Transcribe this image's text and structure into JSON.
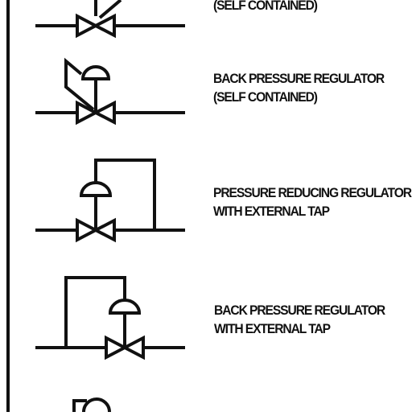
{
  "legend": {
    "entries": [
      {
        "lines": [
          "(SELF CONTAINED)"
        ]
      },
      {
        "lines": [
          "BACK PRESSURE REGULATOR",
          "(SELF CONTAINED)"
        ]
      },
      {
        "lines": [
          "PRESSURE REDUCING REGULATOR",
          "WITH EXTERNAL TAP"
        ]
      },
      {
        "lines": [
          "BACK PRESSURE REGULATOR",
          "WITH EXTERNAL TAP"
        ]
      }
    ]
  },
  "colors": {
    "ink": "#111111",
    "background": "#ffffff"
  }
}
